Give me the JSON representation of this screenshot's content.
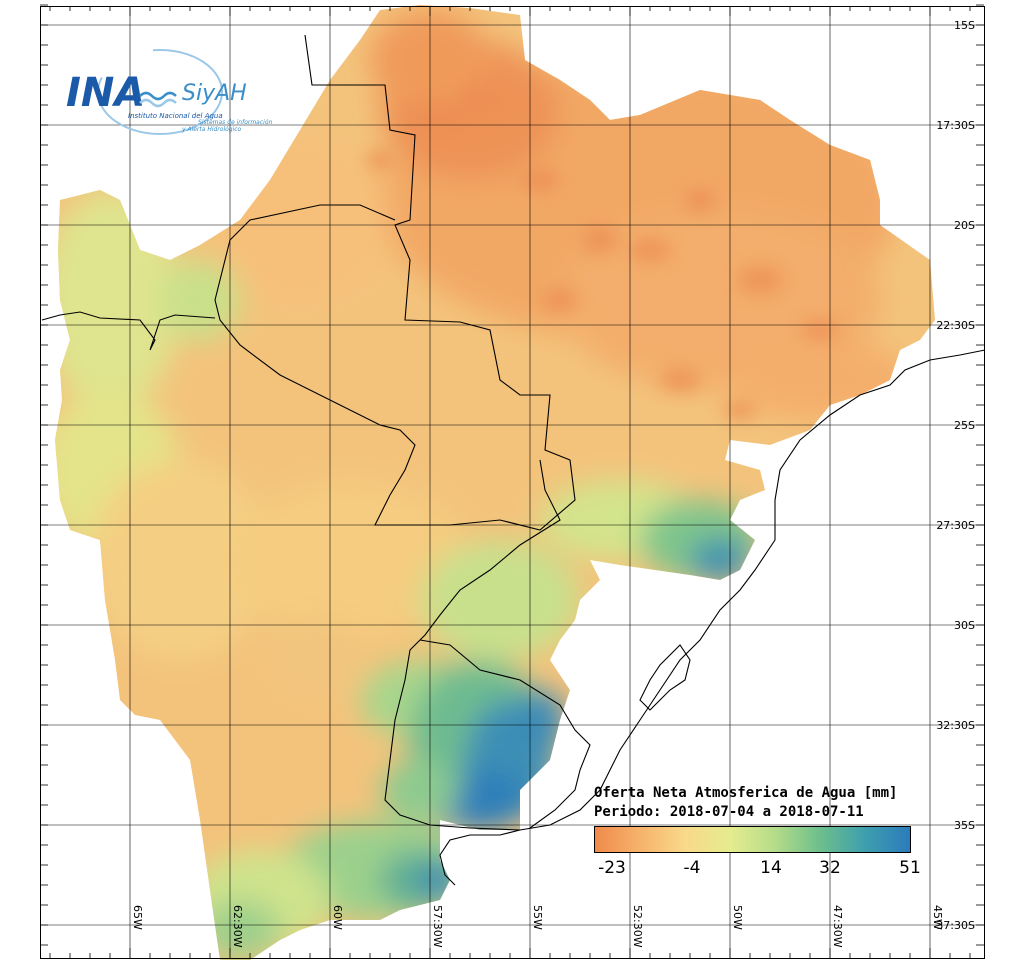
{
  "logo": {
    "brand": "INA",
    "product": "SiyAH",
    "org_name": "Instituto Nacional del Agua",
    "tagline_1": "Sistemas de información",
    "tagline_2": "y Alerta Hidrológico",
    "colors": {
      "primary": "#1a5aa8",
      "secondary": "#3a8fc8"
    }
  },
  "map": {
    "title_line_1": "Oferta Neta Atmosferica de Agua [mm]",
    "title_line_2": "Periodo: 2018-07-04 a 2018-07-11",
    "lat_labels": [
      "15S",
      "17:30S",
      "20S",
      "22:30S",
      "25S",
      "27:30S",
      "30S",
      "32:30S",
      "35S",
      "37:30S"
    ],
    "lon_labels": [
      "65W",
      "62:30W",
      "60W",
      "57:30W",
      "55W",
      "52:30W",
      "50W",
      "47:30W",
      "45W"
    ],
    "colorbar": {
      "tick_labels": [
        "-23",
        "-4",
        "14",
        "32",
        "51"
      ],
      "min": -23,
      "max": 51,
      "colors": [
        "#f08a4b",
        "#f6b36b",
        "#f9d98a",
        "#e5ec8e",
        "#b5dc8a",
        "#6dbf8c",
        "#3e9fae",
        "#2b7bbb"
      ]
    },
    "background_color": "#ffffff"
  }
}
